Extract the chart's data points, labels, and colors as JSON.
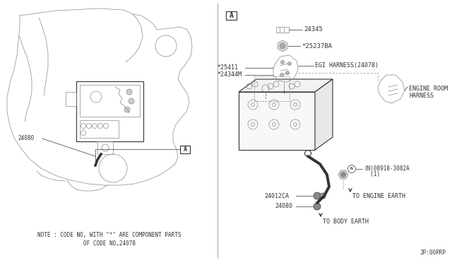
{
  "bg_color": "#ffffff",
  "line_color": "#888888",
  "dark_line": "#333333",
  "fig_width": 6.4,
  "fig_height": 3.72,
  "note_line1": "NOTE : CODE NO, WITH \"*\" ARE COMPONENT PARTS",
  "note_line2": "OF CODE NO,24078",
  "footer": "JP:00PRP",
  "label_A_left": "A",
  "label_A_right": "A",
  "part_24080_left": "24080",
  "part_24345": "24345",
  "part_25237BA": "*25237BA",
  "part_25411": "*25411",
  "part_24344M": "*24344M",
  "part_EGI": "EGI HARNESS(24078)",
  "part_ENGINE_ROOM_1": "ENGINE ROOM",
  "part_ENGINE_ROOM_2": "HARNESS",
  "part_08918_1": "(N)08918-3082A",
  "part_08918_2": "  (1)",
  "part_24012CA": "24012CA",
  "part_24080_right": "24080",
  "to_engine": "TO ENGINE EARTH",
  "to_body": "TO BODY EARTH"
}
